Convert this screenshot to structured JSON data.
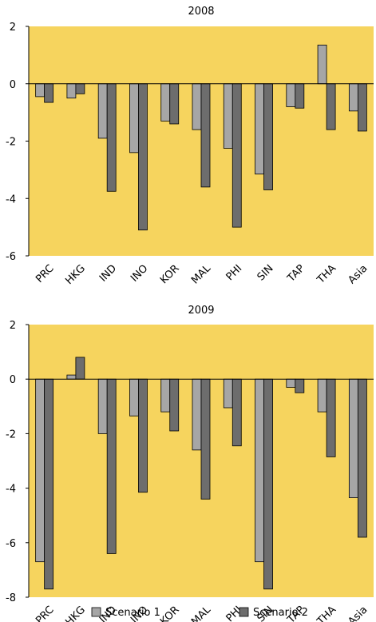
{
  "chart_data": [
    {
      "type": "bar",
      "title": "2008",
      "categories": [
        "PRC",
        "HKG",
        "IND",
        "INO",
        "KOR",
        "MAL",
        "PHI",
        "SIN",
        "TAP",
        "THA",
        "Asia"
      ],
      "series": [
        {
          "name": "Scenario 1",
          "color": "#a6a6a6",
          "values": [
            -0.45,
            -0.5,
            -1.9,
            -2.4,
            -1.3,
            -1.6,
            -2.25,
            -3.15,
            -0.8,
            1.35,
            -0.95
          ]
        },
        {
          "name": "Scenario 2",
          "color": "#6d6d6d",
          "values": [
            -0.65,
            -0.35,
            -3.75,
            -5.1,
            -1.4,
            -3.6,
            -5.0,
            -3.7,
            -0.85,
            -1.6,
            -1.65
          ]
        }
      ],
      "ylim": [
        -6,
        2
      ],
      "yticks": [
        -6,
        -4,
        -2,
        0,
        2
      ],
      "background": "#f6d45e"
    },
    {
      "type": "bar",
      "title": "2009",
      "categories": [
        "PRC",
        "HKG",
        "IND",
        "INO",
        "KOR",
        "MAL",
        "PHI",
        "SIN",
        "TAP",
        "THA",
        "Asia"
      ],
      "series": [
        {
          "name": "Scenario 1",
          "color": "#a6a6a6",
          "values": [
            -6.7,
            0.15,
            -2.0,
            -1.35,
            -1.2,
            -2.6,
            -1.05,
            -6.7,
            -0.3,
            -1.2,
            -4.35
          ]
        },
        {
          "name": "Scenario 2",
          "color": "#6d6d6d",
          "values": [
            -7.7,
            0.8,
            -6.4,
            -4.15,
            -1.9,
            -4.4,
            -2.45,
            -7.7,
            -0.5,
            -2.85,
            -5.8
          ]
        }
      ],
      "ylim": [
        -8,
        2
      ],
      "yticks": [
        -8,
        -6,
        -4,
        -2,
        0,
        2
      ],
      "background": "#f6d45e"
    }
  ]
}
